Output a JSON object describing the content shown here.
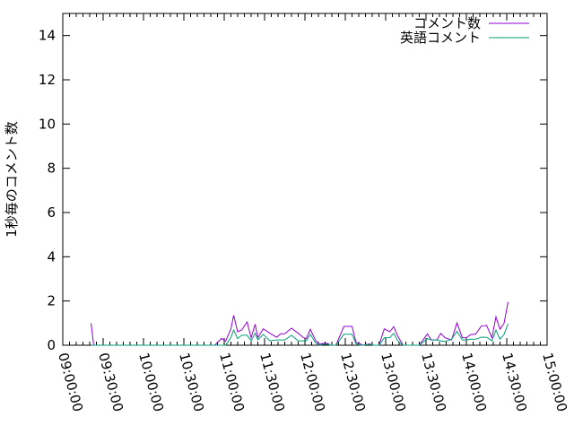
{
  "chart_data": {
    "type": "line",
    "title": "",
    "xlabel": "",
    "ylabel": "1秒毎のコメント数",
    "xlim": [
      "09:00:00",
      "15:00:00"
    ],
    "ylim": [
      0,
      15
    ],
    "x_ticks": [
      "09:00:00",
      "09:30:00",
      "10:00:00",
      "10:30:00",
      "11:00:00",
      "11:30:00",
      "12:00:00",
      "12:30:00",
      "13:00:00",
      "13:30:00",
      "14:00:00",
      "14:30:00",
      "15:00:00"
    ],
    "y_ticks": [
      "0",
      "2",
      "4",
      "6",
      "8",
      "10",
      "12",
      "14"
    ],
    "grid": false,
    "legend_position": "top-right",
    "x": [
      "09:21",
      "09:23",
      "10:53",
      "10:58",
      "11:01",
      "11:05",
      "11:07",
      "11:10",
      "11:13",
      "11:17",
      "11:20",
      "11:23",
      "11:25",
      "11:29",
      "11:34",
      "11:39",
      "11:42",
      "11:45",
      "11:50",
      "11:55",
      "11:59",
      "12:01",
      "12:04",
      "12:08",
      "12:11",
      "12:13",
      "12:17",
      "12:19",
      "12:23",
      "12:29",
      "12:35",
      "12:38",
      "12:41",
      "12:43",
      "12:48",
      "12:51",
      "12:55",
      "12:59",
      "13:03",
      "13:06",
      "13:09",
      "13:13",
      "13:25",
      "13:31",
      "13:34",
      "13:38",
      "13:41",
      "13:44",
      "13:49",
      "13:53",
      "13:57",
      "14:00",
      "14:03",
      "14:07",
      "14:11",
      "14:15",
      "14:19",
      "14:22",
      "14:25",
      "14:28",
      "14:31"
    ],
    "series": [
      {
        "name": "コメント数",
        "color": "#9400d3",
        "values": [
          1.0,
          0,
          0,
          0.31,
          0.18,
          0.74,
          1.35,
          0.61,
          0.69,
          1.05,
          0.34,
          0.95,
          0.34,
          0.74,
          0.54,
          0.36,
          0.52,
          0.52,
          0.77,
          0.54,
          0.34,
          0.3,
          0.72,
          0.2,
          0.04,
          0.08,
          0.08,
          0,
          0,
          0.85,
          0.85,
          0.13,
          0.06,
          0,
          0.06,
          0,
          0,
          0.74,
          0.61,
          0.84,
          0.41,
          0,
          0,
          0.51,
          0.24,
          0.24,
          0.54,
          0.34,
          0.24,
          1.01,
          0.34,
          0.34,
          0.47,
          0.51,
          0.86,
          0.9,
          0.34,
          1.28,
          0.72,
          0.99,
          1.96
        ]
      },
      {
        "name": "英語コメント",
        "color": "#009e73",
        "values": [
          0,
          0,
          0,
          0,
          0,
          0.35,
          0.68,
          0.3,
          0.45,
          0.45,
          0.2,
          0.54,
          0.24,
          0.49,
          0.2,
          0.24,
          0.24,
          0.24,
          0.45,
          0.2,
          0.2,
          0.2,
          0.49,
          0.1,
          0,
          0.04,
          0.04,
          0,
          0,
          0.5,
          0.5,
          0.07,
          0,
          0,
          0.04,
          0,
          0,
          0.34,
          0.34,
          0.54,
          0.2,
          0,
          0,
          0.3,
          0.24,
          0.24,
          0.2,
          0.17,
          0.27,
          0.63,
          0.24,
          0.24,
          0.27,
          0.27,
          0.36,
          0.36,
          0.2,
          0.68,
          0.27,
          0.49,
          0.97
        ]
      }
    ]
  }
}
